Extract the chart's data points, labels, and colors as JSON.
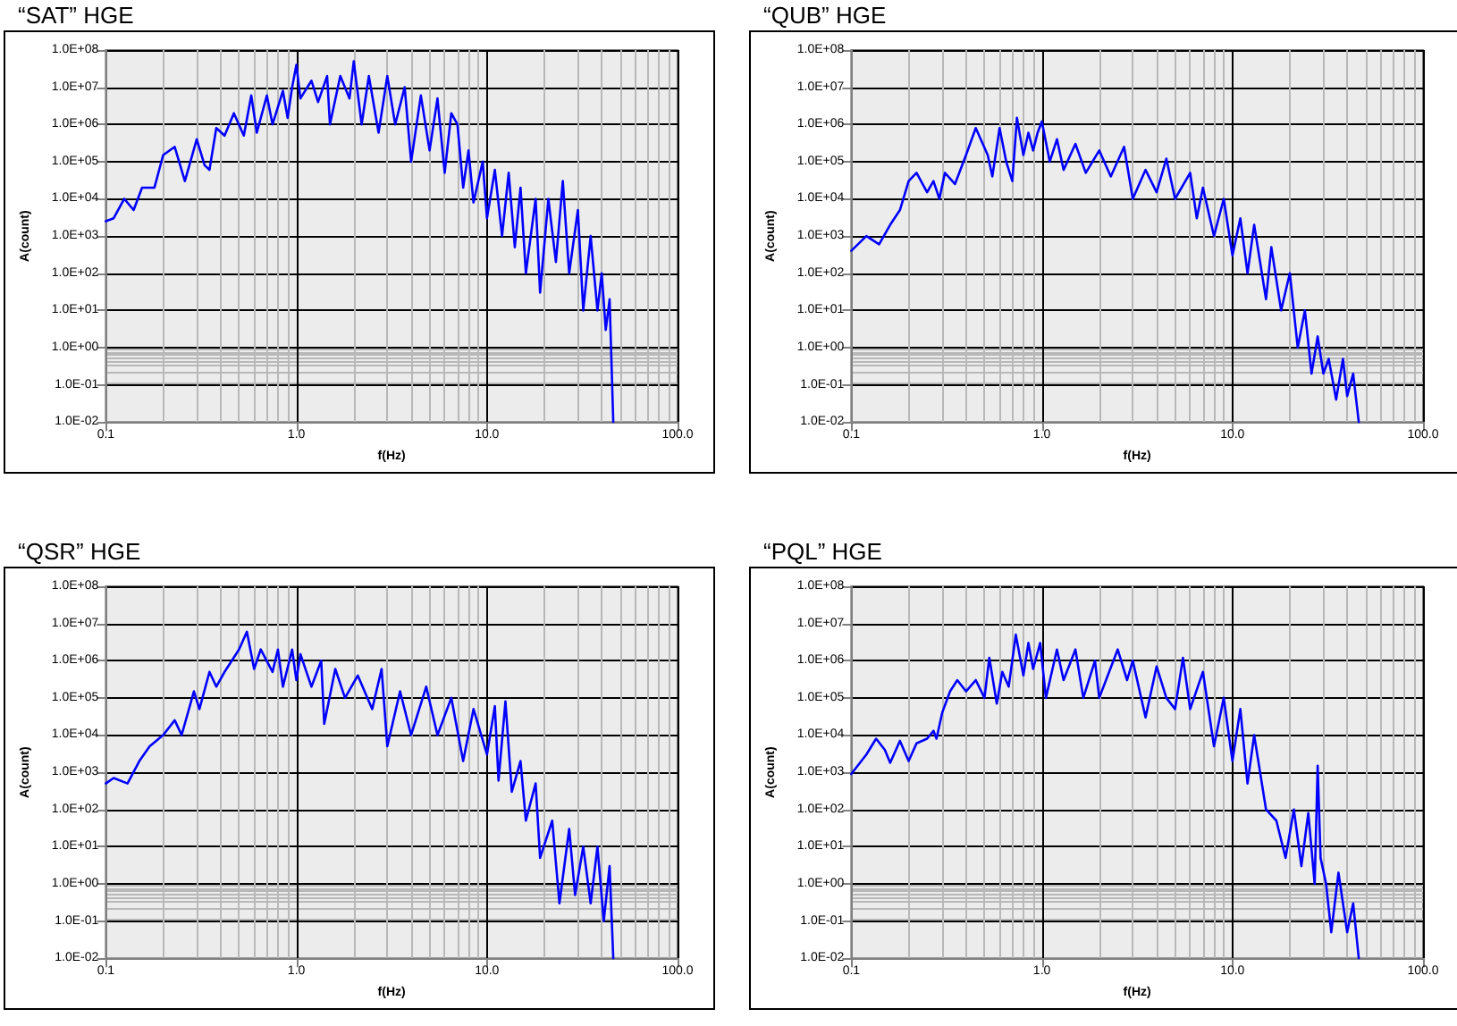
{
  "chart_data": [
    {
      "type": "line",
      "title": "“SAT” HGE",
      "xlabel": "f(Hz)",
      "ylabel": "A(count)",
      "log": "xy",
      "grid": true,
      "xlim": [
        0.1,
        100
      ],
      "ylim": [
        0.01,
        100000000
      ],
      "xticks": [
        {
          "value": 0.1,
          "label": "0.1"
        },
        {
          "value": 1,
          "label": "1.0"
        },
        {
          "value": 10,
          "label": "10.0"
        },
        {
          "value": 100,
          "label": "100.0"
        }
      ],
      "yticks": [
        {
          "value": 0.01,
          "label": "1.0E-02"
        },
        {
          "value": 0.1,
          "label": "1.0E-01"
        },
        {
          "value": 1,
          "label": "1.0E+00"
        },
        {
          "value": 10,
          "label": "1.0E+01"
        },
        {
          "value": 100,
          "label": "1.0E+02"
        },
        {
          "value": 1000,
          "label": "1.0E+03"
        },
        {
          "value": 10000,
          "label": "1.0E+04"
        },
        {
          "value": 100000,
          "label": "1.0E+05"
        },
        {
          "value": 1000000,
          "label": "1.0E+06"
        },
        {
          "value": 10000000,
          "label": "1.0E+07"
        },
        {
          "value": 100000000,
          "label": "1.0E+08"
        }
      ],
      "x": [
        0.1,
        0.11,
        0.125,
        0.14,
        0.155,
        0.18,
        0.2,
        0.23,
        0.26,
        0.3,
        0.33,
        0.35,
        0.38,
        0.42,
        0.47,
        0.53,
        0.58,
        0.62,
        0.7,
        0.75,
        0.85,
        0.9,
        0.95,
        1.0,
        1.05,
        1.2,
        1.3,
        1.45,
        1.5,
        1.7,
        1.9,
        2.0,
        2.2,
        2.4,
        2.7,
        3.0,
        3.3,
        3.7,
        4.0,
        4.5,
        5.0,
        5.5,
        6.0,
        6.5,
        7.0,
        7.5,
        8.0,
        8.5,
        9.5,
        10,
        11,
        12,
        13,
        14,
        15,
        16,
        18,
        19,
        21,
        23,
        25,
        27,
        30,
        32,
        35,
        38,
        40,
        42,
        44,
        46
      ],
      "series": [
        {
          "color": "#0000ff",
          "values": [
            2500,
            3000,
            10000,
            5000,
            20000,
            20000,
            150000,
            250000,
            30000,
            400000,
            80000,
            60000,
            800000,
            500000,
            2000000,
            500000,
            6000000,
            600000,
            6000000,
            1000000,
            8000000,
            1500000,
            10000000,
            40000000,
            5000000,
            15000000,
            4000000,
            20000000,
            1000000,
            20000000,
            5000000,
            50000000,
            1000000,
            20000000,
            600000,
            20000000,
            1000000,
            10000000,
            100000,
            6000000,
            200000,
            5000000,
            50000,
            2000000,
            1000000,
            20000,
            200000,
            8000,
            100000,
            3000,
            60000,
            1000,
            50000,
            500,
            20000,
            100,
            10000,
            30,
            10000,
            200,
            30000,
            100,
            5000,
            10,
            1000,
            10,
            100,
            3,
            20,
            0.01
          ]
        }
      ]
    },
    {
      "type": "line",
      "title": "“QUB” HGE",
      "xlabel": "f(Hz)",
      "ylabel": "A(count)",
      "log": "xy",
      "grid": true,
      "xlim": [
        0.1,
        100
      ],
      "ylim": [
        0.01,
        100000000
      ],
      "xticks": [
        {
          "value": 0.1,
          "label": "0.1"
        },
        {
          "value": 1,
          "label": "1.0"
        },
        {
          "value": 10,
          "label": "10.0"
        },
        {
          "value": 100,
          "label": "100.0"
        }
      ],
      "yticks": [
        {
          "value": 0.01,
          "label": "1.0E-02"
        },
        {
          "value": 0.1,
          "label": "1.0E-01"
        },
        {
          "value": 1,
          "label": "1.0E+00"
        },
        {
          "value": 10,
          "label": "1.0E+01"
        },
        {
          "value": 100,
          "label": "1.0E+02"
        },
        {
          "value": 1000,
          "label": "1.0E+03"
        },
        {
          "value": 10000,
          "label": "1.0E+04"
        },
        {
          "value": 100000,
          "label": "1.0E+05"
        },
        {
          "value": 1000000,
          "label": "1.0E+06"
        },
        {
          "value": 10000000,
          "label": "1.0E+07"
        },
        {
          "value": 100000000,
          "label": "1.0E+08"
        }
      ],
      "x": [
        0.1,
        0.12,
        0.14,
        0.16,
        0.18,
        0.2,
        0.22,
        0.25,
        0.27,
        0.29,
        0.31,
        0.35,
        0.4,
        0.45,
        0.52,
        0.55,
        0.6,
        0.65,
        0.7,
        0.74,
        0.8,
        0.85,
        0.9,
        0.95,
        1.0,
        1.1,
        1.2,
        1.3,
        1.5,
        1.7,
        2.0,
        2.3,
        2.7,
        3.0,
        3.5,
        4.0,
        4.5,
        5.0,
        6.0,
        6.5,
        7.0,
        8.0,
        9.0,
        10,
        11,
        12,
        13,
        15,
        16,
        18,
        20,
        22,
        24,
        26,
        28,
        30,
        32,
        35,
        38,
        40,
        43,
        46
      ],
      "series": [
        {
          "color": "#0000ff",
          "values": [
            400,
            1000,
            600,
            2000,
            5000,
            30000,
            50000,
            15000,
            30000,
            10000,
            50000,
            25000,
            150000,
            800000,
            150000,
            40000,
            800000,
            100000,
            30000,
            1500000,
            150000,
            600000,
            200000,
            600000,
            1200000,
            100000,
            400000,
            60000,
            300000,
            50000,
            200000,
            40000,
            250000,
            10000,
            60000,
            15000,
            120000,
            10000,
            50000,
            3000,
            20000,
            1000,
            10000,
            300,
            3000,
            100,
            2000,
            20,
            500,
            10,
            100,
            1,
            10,
            0.2,
            2,
            0.2,
            0.5,
            0.04,
            0.5,
            0.05,
            0.2,
            0.01
          ]
        }
      ]
    },
    {
      "type": "line",
      "title": "“QSR” HGE",
      "xlabel": "f(Hz)",
      "ylabel": "A(count)",
      "log": "xy",
      "grid": true,
      "xlim": [
        0.1,
        100
      ],
      "ylim": [
        0.01,
        100000000
      ],
      "xticks": [
        {
          "value": 0.1,
          "label": "0.1"
        },
        {
          "value": 1,
          "label": "1.0"
        },
        {
          "value": 10,
          "label": "10.0"
        },
        {
          "value": 100,
          "label": "100.0"
        }
      ],
      "yticks": [
        {
          "value": 0.01,
          "label": "1.0E-02"
        },
        {
          "value": 0.1,
          "label": "1.0E-01"
        },
        {
          "value": 1,
          "label": "1.0E+00"
        },
        {
          "value": 10,
          "label": "1.0E+01"
        },
        {
          "value": 100,
          "label": "1.0E+02"
        },
        {
          "value": 1000,
          "label": "1.0E+03"
        },
        {
          "value": 10000,
          "label": "1.0E+04"
        },
        {
          "value": 100000,
          "label": "1.0E+05"
        },
        {
          "value": 1000000,
          "label": "1.0E+06"
        },
        {
          "value": 10000000,
          "label": "1.0E+07"
        },
        {
          "value": 100000000,
          "label": "1.0E+08"
        }
      ],
      "x": [
        0.1,
        0.11,
        0.13,
        0.15,
        0.17,
        0.2,
        0.23,
        0.25,
        0.29,
        0.31,
        0.35,
        0.38,
        0.42,
        0.5,
        0.55,
        0.6,
        0.65,
        0.75,
        0.8,
        0.85,
        0.95,
        1.0,
        1.05,
        1.2,
        1.35,
        1.4,
        1.6,
        1.8,
        2.1,
        2.5,
        2.8,
        3.0,
        3.5,
        4.0,
        4.8,
        5.5,
        6.5,
        7.5,
        8.5,
        10,
        11,
        11.5,
        12.5,
        13.5,
        15,
        16,
        18,
        19,
        22,
        24,
        27,
        29,
        32,
        35,
        38,
        41,
        44,
        46
      ],
      "series": [
        {
          "color": "#0000ff",
          "values": [
            500,
            700,
            500,
            2000,
            5000,
            10000,
            25000,
            10000,
            150000,
            50000,
            500000,
            200000,
            500000,
            2000000,
            6000000,
            600000,
            2000000,
            500000,
            2000000,
            200000,
            2000000,
            300000,
            1500000,
            200000,
            1000000,
            20000,
            600000,
            100000,
            400000,
            50000,
            600000,
            5000,
            150000,
            10000,
            200000,
            10000,
            100000,
            2000,
            50000,
            3000,
            60000,
            600,
            80000,
            300,
            2000,
            50,
            500,
            5,
            50,
            0.3,
            30,
            0.5,
            10,
            0.3,
            10,
            0.1,
            3,
            0.01
          ]
        }
      ]
    },
    {
      "type": "line",
      "title": "“PQL” HGE",
      "xlabel": "f(Hz)",
      "ylabel": "A(count)",
      "log": "xy",
      "grid": true,
      "xlim": [
        0.1,
        100
      ],
      "ylim": [
        0.01,
        100000000
      ],
      "xticks": [
        {
          "value": 0.1,
          "label": "0.1"
        },
        {
          "value": 1,
          "label": "1.0"
        },
        {
          "value": 10,
          "label": "10.0"
        },
        {
          "value": 100,
          "label": "100.0"
        }
      ],
      "yticks": [
        {
          "value": 0.01,
          "label": "1.0E-02"
        },
        {
          "value": 0.1,
          "label": "1.0E-01"
        },
        {
          "value": 1,
          "label": "1.0E+00"
        },
        {
          "value": 10,
          "label": "1.0E+01"
        },
        {
          "value": 100,
          "label": "1.0E+02"
        },
        {
          "value": 1000,
          "label": "1.0E+03"
        },
        {
          "value": 10000,
          "label": "1.0E+04"
        },
        {
          "value": 100000,
          "label": "1.0E+05"
        },
        {
          "value": 1000000,
          "label": "1.0E+06"
        },
        {
          "value": 10000000,
          "label": "1.0E+07"
        },
        {
          "value": 100000000,
          "label": "1.0E+08"
        }
      ],
      "x": [
        0.1,
        0.12,
        0.135,
        0.15,
        0.16,
        0.18,
        0.2,
        0.22,
        0.25,
        0.27,
        0.28,
        0.3,
        0.33,
        0.36,
        0.4,
        0.45,
        0.5,
        0.53,
        0.58,
        0.62,
        0.67,
        0.73,
        0.8,
        0.85,
        0.9,
        0.98,
        1.05,
        1.2,
        1.3,
        1.5,
        1.65,
        1.9,
        2.0,
        2.5,
        2.8,
        3.0,
        3.5,
        4.0,
        4.5,
        5.0,
        5.5,
        6.0,
        7.0,
        8.0,
        9.0,
        10,
        11,
        12,
        13,
        15,
        17,
        19,
        21,
        23,
        25,
        27,
        28,
        29,
        31,
        33,
        36,
        40,
        43,
        46
      ],
      "series": [
        {
          "color": "#0000ff",
          "values": [
            900,
            3000,
            8000,
            4000,
            1800,
            7000,
            2000,
            6000,
            8000,
            13000,
            8000,
            40000,
            150000,
            300000,
            150000,
            300000,
            100000,
            1200000,
            70000,
            500000,
            200000,
            5000000,
            400000,
            3000000,
            600000,
            3000000,
            100000,
            2000000,
            300000,
            2000000,
            100000,
            1000000,
            100000,
            2000000,
            300000,
            1000000,
            30000,
            700000,
            100000,
            50000,
            1200000,
            50000,
            500000,
            5000,
            100000,
            2000,
            50000,
            500,
            10000,
            100,
            50,
            5,
            100,
            3,
            80,
            1,
            1500,
            5,
            1,
            0.05,
            2,
            0.05,
            0.3,
            0.01
          ]
        }
      ]
    }
  ]
}
